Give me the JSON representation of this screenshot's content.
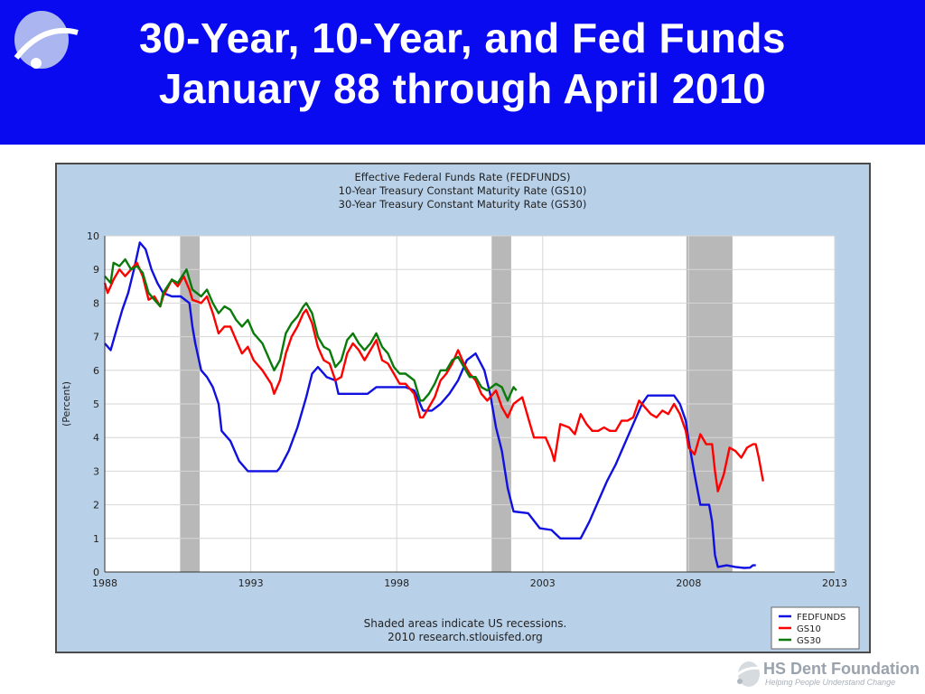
{
  "slide": {
    "title_line1": "30-Year, 10-Year, and Fed Funds",
    "title_line2": "January 88 through April 2010",
    "header_color": "#0a0af0",
    "brand": "HS Dent Foundation",
    "tagline": "Helping People Understand Change"
  },
  "chart_data": {
    "type": "line",
    "title_lines": [
      "Effective Federal Funds Rate (FEDFUNDS)",
      "10-Year Treasury Constant Maturity Rate (GS10)",
      "30-Year Treasury Constant Maturity Rate (GS30)"
    ],
    "ylabel": "(Percent)",
    "xlim": [
      1988,
      2013
    ],
    "ylim": [
      0,
      10
    ],
    "x_ticks": [
      1988,
      1993,
      1998,
      2003,
      2008,
      2013
    ],
    "y_ticks": [
      0,
      1,
      2,
      3,
      4,
      5,
      6,
      7,
      8,
      9,
      10
    ],
    "recessions": [
      [
        1990.58,
        1991.25
      ],
      [
        2001.25,
        2001.92
      ],
      [
        2007.92,
        2009.5
      ]
    ],
    "note_lines": [
      "Shaded areas indicate US recessions.",
      "2010 research.stlouisfed.org"
    ],
    "legend_position": "bottom-right",
    "series": [
      {
        "name": "FEDFUNDS",
        "color": "#1010e0",
        "points": [
          [
            1988.0,
            6.8
          ],
          [
            1988.2,
            6.6
          ],
          [
            1988.4,
            7.2
          ],
          [
            1988.6,
            7.8
          ],
          [
            1988.8,
            8.3
          ],
          [
            1989.0,
            9.0
          ],
          [
            1989.2,
            9.8
          ],
          [
            1989.4,
            9.6
          ],
          [
            1989.6,
            9.0
          ],
          [
            1989.8,
            8.6
          ],
          [
            1990.0,
            8.3
          ],
          [
            1990.3,
            8.2
          ],
          [
            1990.6,
            8.2
          ],
          [
            1990.9,
            8.0
          ],
          [
            1991.0,
            7.3
          ],
          [
            1991.1,
            6.8
          ],
          [
            1991.3,
            6.0
          ],
          [
            1991.5,
            5.8
          ],
          [
            1991.7,
            5.5
          ],
          [
            1991.9,
            5.0
          ],
          [
            1992.0,
            4.2
          ],
          [
            1992.3,
            3.9
          ],
          [
            1992.6,
            3.3
          ],
          [
            1992.9,
            3.0
          ],
          [
            1993.5,
            3.0
          ],
          [
            1993.9,
            3.0
          ],
          [
            1994.0,
            3.1
          ],
          [
            1994.3,
            3.6
          ],
          [
            1994.6,
            4.3
          ],
          [
            1994.9,
            5.2
          ],
          [
            1995.1,
            5.9
          ],
          [
            1995.3,
            6.1
          ],
          [
            1995.6,
            5.8
          ],
          [
            1995.9,
            5.7
          ],
          [
            1996.0,
            5.3
          ],
          [
            1996.5,
            5.3
          ],
          [
            1997.0,
            5.3
          ],
          [
            1997.3,
            5.5
          ],
          [
            1997.7,
            5.5
          ],
          [
            1998.3,
            5.5
          ],
          [
            1998.6,
            5.4
          ],
          [
            1998.9,
            4.8
          ],
          [
            1999.2,
            4.8
          ],
          [
            1999.5,
            5.0
          ],
          [
            1999.8,
            5.3
          ],
          [
            2000.1,
            5.7
          ],
          [
            2000.4,
            6.3
          ],
          [
            2000.7,
            6.5
          ],
          [
            2001.0,
            6.0
          ],
          [
            2001.2,
            5.3
          ],
          [
            2001.4,
            4.3
          ],
          [
            2001.6,
            3.6
          ],
          [
            2001.8,
            2.5
          ],
          [
            2002.0,
            1.8
          ],
          [
            2002.5,
            1.75
          ],
          [
            2002.9,
            1.3
          ],
          [
            2003.3,
            1.25
          ],
          [
            2003.6,
            1.0
          ],
          [
            2004.0,
            1.0
          ],
          [
            2004.3,
            1.0
          ],
          [
            2004.6,
            1.5
          ],
          [
            2004.9,
            2.1
          ],
          [
            2005.2,
            2.7
          ],
          [
            2005.5,
            3.2
          ],
          [
            2005.8,
            3.8
          ],
          [
            2006.1,
            4.4
          ],
          [
            2006.4,
            5.0
          ],
          [
            2006.6,
            5.25
          ],
          [
            2007.0,
            5.25
          ],
          [
            2007.5,
            5.25
          ],
          [
            2007.7,
            5.0
          ],
          [
            2007.9,
            4.5
          ],
          [
            2008.0,
            3.9
          ],
          [
            2008.2,
            2.9
          ],
          [
            2008.4,
            2.0
          ],
          [
            2008.7,
            2.0
          ],
          [
            2008.8,
            1.5
          ],
          [
            2008.9,
            0.5
          ],
          [
            2009.0,
            0.15
          ],
          [
            2009.3,
            0.2
          ],
          [
            2009.6,
            0.15
          ],
          [
            2009.9,
            0.12
          ],
          [
            2010.1,
            0.13
          ],
          [
            2010.2,
            0.2
          ],
          [
            2010.3,
            0.2
          ]
        ]
      },
      {
        "name": "GS10",
        "color": "#ff0000",
        "points": [
          [
            1988.0,
            8.6
          ],
          [
            1988.1,
            8.3
          ],
          [
            1988.3,
            8.7
          ],
          [
            1988.5,
            9.0
          ],
          [
            1988.7,
            8.8
          ],
          [
            1988.9,
            9.0
          ],
          [
            1989.1,
            9.2
          ],
          [
            1989.3,
            8.8
          ],
          [
            1989.5,
            8.1
          ],
          [
            1989.7,
            8.2
          ],
          [
            1989.9,
            7.9
          ],
          [
            1990.0,
            8.2
          ],
          [
            1990.3,
            8.7
          ],
          [
            1990.5,
            8.5
          ],
          [
            1990.7,
            8.8
          ],
          [
            1990.9,
            8.4
          ],
          [
            1991.0,
            8.1
          ],
          [
            1991.3,
            8.0
          ],
          [
            1991.5,
            8.2
          ],
          [
            1991.7,
            7.7
          ],
          [
            1991.9,
            7.1
          ],
          [
            1992.1,
            7.3
          ],
          [
            1992.3,
            7.3
          ],
          [
            1992.5,
            6.9
          ],
          [
            1992.7,
            6.5
          ],
          [
            1992.9,
            6.7
          ],
          [
            1993.1,
            6.3
          ],
          [
            1993.4,
            6.0
          ],
          [
            1993.7,
            5.6
          ],
          [
            1993.8,
            5.3
          ],
          [
            1994.0,
            5.7
          ],
          [
            1994.2,
            6.5
          ],
          [
            1994.4,
            7.0
          ],
          [
            1994.6,
            7.3
          ],
          [
            1994.8,
            7.7
          ],
          [
            1994.9,
            7.8
          ],
          [
            1995.1,
            7.4
          ],
          [
            1995.3,
            6.7
          ],
          [
            1995.5,
            6.3
          ],
          [
            1995.7,
            6.2
          ],
          [
            1995.9,
            5.7
          ],
          [
            1996.1,
            5.8
          ],
          [
            1996.3,
            6.5
          ],
          [
            1996.5,
            6.8
          ],
          [
            1996.7,
            6.6
          ],
          [
            1996.9,
            6.3
          ],
          [
            1997.1,
            6.6
          ],
          [
            1997.3,
            6.9
          ],
          [
            1997.5,
            6.3
          ],
          [
            1997.7,
            6.2
          ],
          [
            1997.9,
            5.9
          ],
          [
            1998.1,
            5.6
          ],
          [
            1998.3,
            5.6
          ],
          [
            1998.6,
            5.3
          ],
          [
            1998.8,
            4.6
          ],
          [
            1998.9,
            4.6
          ],
          [
            1999.1,
            4.9
          ],
          [
            1999.3,
            5.2
          ],
          [
            1999.5,
            5.7
          ],
          [
            1999.7,
            5.9
          ],
          [
            1999.9,
            6.2
          ],
          [
            2000.1,
            6.6
          ],
          [
            2000.3,
            6.2
          ],
          [
            2000.5,
            5.9
          ],
          [
            2000.7,
            5.7
          ],
          [
            2000.9,
            5.3
          ],
          [
            2001.1,
            5.1
          ],
          [
            2001.4,
            5.4
          ],
          [
            2001.6,
            4.9
          ],
          [
            2001.8,
            4.6
          ],
          [
            2002.0,
            5.0
          ],
          [
            2002.3,
            5.2
          ],
          [
            2002.5,
            4.6
          ],
          [
            2002.7,
            4.0
          ],
          [
            2002.9,
            4.0
          ],
          [
            2003.1,
            4.0
          ],
          [
            2003.3,
            3.6
          ],
          [
            2003.4,
            3.3
          ],
          [
            2003.6,
            4.4
          ],
          [
            2003.9,
            4.3
          ],
          [
            2004.1,
            4.1
          ],
          [
            2004.3,
            4.7
          ],
          [
            2004.5,
            4.4
          ],
          [
            2004.7,
            4.2
          ],
          [
            2004.9,
            4.2
          ],
          [
            2005.1,
            4.3
          ],
          [
            2005.3,
            4.2
          ],
          [
            2005.5,
            4.2
          ],
          [
            2005.7,
            4.5
          ],
          [
            2005.9,
            4.5
          ],
          [
            2006.1,
            4.6
          ],
          [
            2006.3,
            5.1
          ],
          [
            2006.5,
            4.9
          ],
          [
            2006.7,
            4.7
          ],
          [
            2006.9,
            4.6
          ],
          [
            2007.1,
            4.8
          ],
          [
            2007.3,
            4.7
          ],
          [
            2007.5,
            5.0
          ],
          [
            2007.7,
            4.7
          ],
          [
            2007.9,
            4.2
          ],
          [
            2008.0,
            3.7
          ],
          [
            2008.2,
            3.5
          ],
          [
            2008.4,
            4.1
          ],
          [
            2008.6,
            3.8
          ],
          [
            2008.8,
            3.8
          ],
          [
            2008.9,
            3.0
          ],
          [
            2009.0,
            2.4
          ],
          [
            2009.2,
            2.9
          ],
          [
            2009.4,
            3.7
          ],
          [
            2009.6,
            3.6
          ],
          [
            2009.8,
            3.4
          ],
          [
            2010.0,
            3.7
          ],
          [
            2010.2,
            3.8
          ],
          [
            2010.3,
            3.8
          ],
          [
            2010.4,
            3.4
          ],
          [
            2010.55,
            2.7
          ]
        ]
      },
      {
        "name": "GS30",
        "color": "#0a7a0a",
        "points": [
          [
            1988.0,
            8.8
          ],
          [
            1988.2,
            8.6
          ],
          [
            1988.3,
            9.2
          ],
          [
            1988.5,
            9.1
          ],
          [
            1988.7,
            9.3
          ],
          [
            1988.9,
            9.0
          ],
          [
            1989.1,
            9.1
          ],
          [
            1989.3,
            8.9
          ],
          [
            1989.5,
            8.3
          ],
          [
            1989.7,
            8.1
          ],
          [
            1989.9,
            7.9
          ],
          [
            1990.0,
            8.3
          ],
          [
            1990.3,
            8.7
          ],
          [
            1990.5,
            8.6
          ],
          [
            1990.8,
            9.0
          ],
          [
            1991.0,
            8.4
          ],
          [
            1991.3,
            8.2
          ],
          [
            1991.5,
            8.4
          ],
          [
            1991.7,
            8.0
          ],
          [
            1991.9,
            7.7
          ],
          [
            1992.1,
            7.9
          ],
          [
            1992.3,
            7.8
          ],
          [
            1992.5,
            7.5
          ],
          [
            1992.7,
            7.3
          ],
          [
            1992.9,
            7.5
          ],
          [
            1993.1,
            7.1
          ],
          [
            1993.4,
            6.8
          ],
          [
            1993.7,
            6.2
          ],
          [
            1993.8,
            6.0
          ],
          [
            1994.0,
            6.3
          ],
          [
            1994.2,
            7.1
          ],
          [
            1994.4,
            7.4
          ],
          [
            1994.6,
            7.6
          ],
          [
            1994.8,
            7.9
          ],
          [
            1994.9,
            8.0
          ],
          [
            1995.1,
            7.7
          ],
          [
            1995.3,
            7.0
          ],
          [
            1995.5,
            6.7
          ],
          [
            1995.7,
            6.6
          ],
          [
            1995.9,
            6.1
          ],
          [
            1996.1,
            6.3
          ],
          [
            1996.3,
            6.9
          ],
          [
            1996.5,
            7.1
          ],
          [
            1996.7,
            6.8
          ],
          [
            1996.9,
            6.6
          ],
          [
            1997.1,
            6.8
          ],
          [
            1997.3,
            7.1
          ],
          [
            1997.5,
            6.7
          ],
          [
            1997.7,
            6.5
          ],
          [
            1997.9,
            6.1
          ],
          [
            1998.1,
            5.9
          ],
          [
            1998.3,
            5.9
          ],
          [
            1998.6,
            5.7
          ],
          [
            1998.8,
            5.1
          ],
          [
            1998.9,
            5.1
          ],
          [
            1999.1,
            5.3
          ],
          [
            1999.3,
            5.6
          ],
          [
            1999.5,
            6.0
          ],
          [
            1999.7,
            6.0
          ],
          [
            1999.9,
            6.3
          ],
          [
            2000.1,
            6.4
          ],
          [
            2000.3,
            6.1
          ],
          [
            2000.5,
            5.8
          ],
          [
            2000.7,
            5.8
          ],
          [
            2000.9,
            5.5
          ],
          [
            2001.1,
            5.4
          ],
          [
            2001.4,
            5.6
          ],
          [
            2001.6,
            5.5
          ],
          [
            2001.8,
            5.1
          ],
          [
            2001.9,
            5.3
          ],
          [
            2002.0,
            5.5
          ],
          [
            2002.1,
            5.4
          ]
        ]
      }
    ]
  }
}
